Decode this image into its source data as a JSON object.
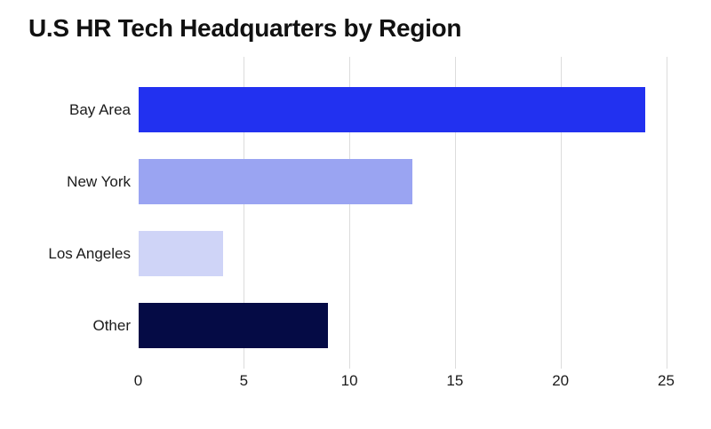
{
  "chart_data": {
    "type": "bar",
    "orientation": "horizontal",
    "title": "U.S HR Tech Headquarters by Region",
    "categories": [
      "Bay Area",
      "New York",
      "Los Angeles",
      "Other"
    ],
    "values": [
      24,
      13,
      4,
      9
    ],
    "bar_colors": [
      "#2231F0",
      "#9AA4F2",
      "#CFD4F7",
      "#050B45"
    ],
    "xlabel": "",
    "ylabel": "",
    "xlim": [
      0,
      25
    ],
    "x_ticks": [
      0,
      5,
      10,
      15,
      20,
      25
    ],
    "grid": "vertical",
    "gridline_color": "#DCDCDC",
    "text_color": "#1B1B1B",
    "title_color": "#111111",
    "background_color": "#FFFFFF",
    "legend_position": "none"
  }
}
